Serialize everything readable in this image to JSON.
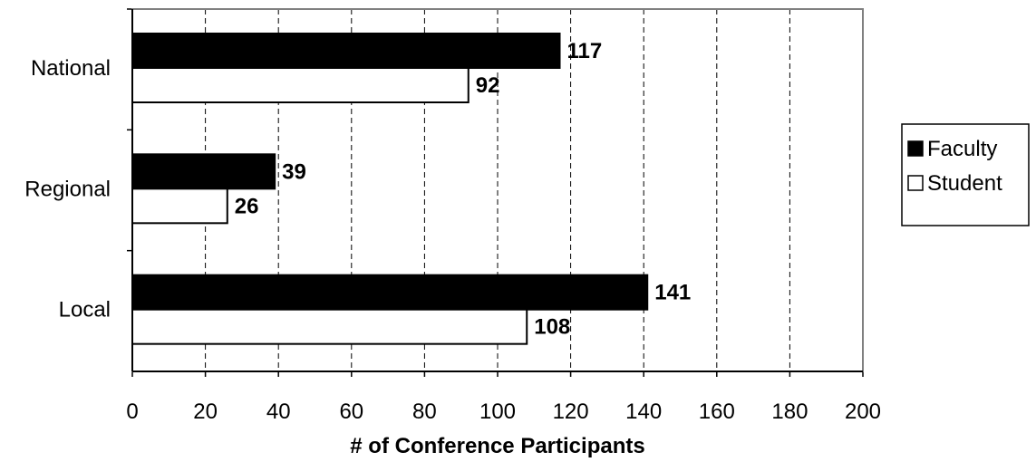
{
  "chart_data": {
    "type": "bar",
    "orientation": "horizontal",
    "categories": [
      "National",
      "Regional",
      "Local"
    ],
    "series": [
      {
        "name": "Faculty",
        "values": [
          117,
          39,
          141
        ],
        "color": "#000000"
      },
      {
        "name": "Student",
        "values": [
          92,
          26,
          108
        ],
        "color": "#ffffff"
      }
    ],
    "data_labels": [
      [
        "117",
        "39",
        "141"
      ],
      [
        "92",
        "26",
        "108"
      ]
    ],
    "title": "",
    "xlabel": "# of Conference Participants",
    "ylabel": "",
    "xlim": [
      0,
      200
    ],
    "xticks": [
      "0",
      "20",
      "40",
      "60",
      "80",
      "100",
      "120",
      "140",
      "160",
      "180",
      "200"
    ],
    "grid": "vertical dashed",
    "legend_position": "right",
    "plot_border_color": "#808080"
  }
}
